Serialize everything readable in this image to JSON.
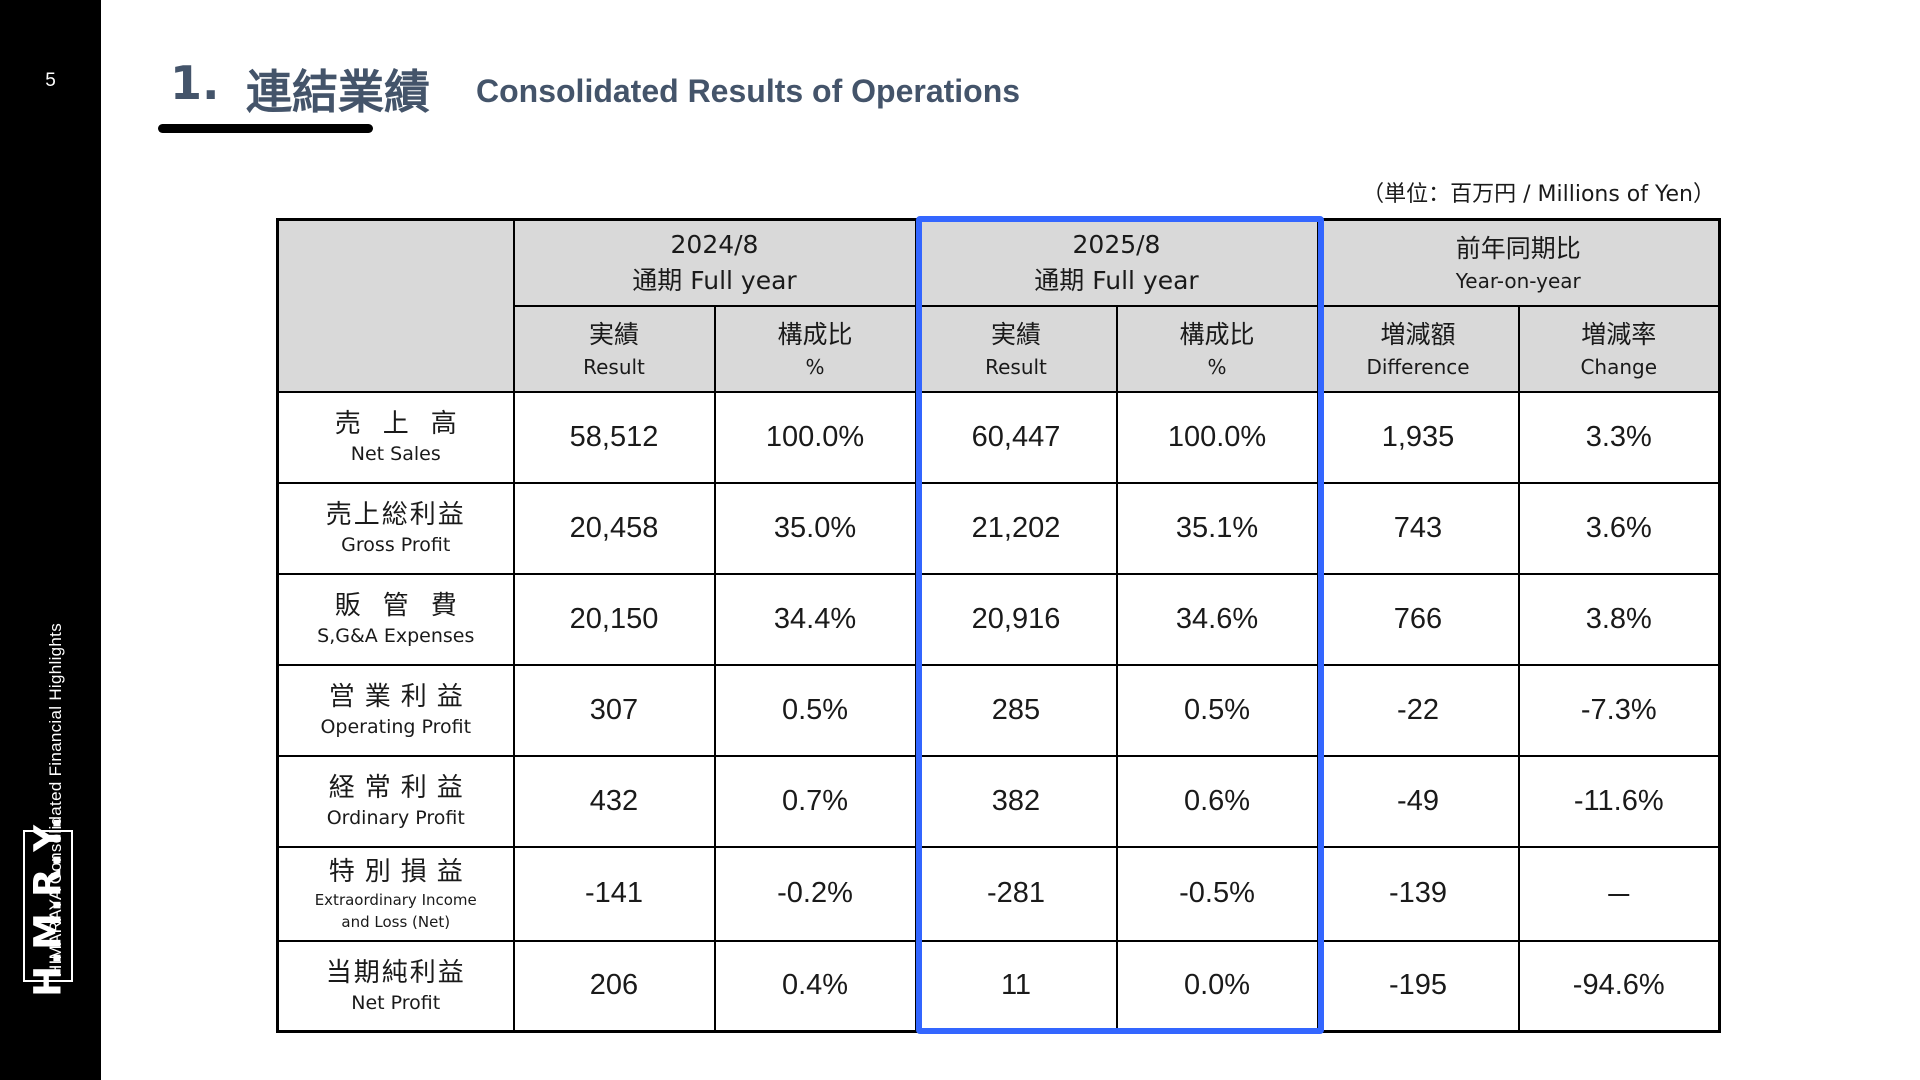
{
  "page_number": "5",
  "sidebar": {
    "caption": "HIMARAYA  Consolidated Financial Highlights",
    "logo": "H.M.R.Y."
  },
  "header": {
    "number": "1.",
    "title_ja": "連結業績",
    "title_en": "Consolidated Results of Operations"
  },
  "unit_note": "（単位：百万円  /  Millions of Yen）",
  "colors": {
    "accent_box": "#3366ff",
    "title": "#44546a",
    "header_bg": "#d9d9d9",
    "sidebar": "#000000"
  },
  "table": {
    "groups": [
      {
        "period": "2024/8",
        "label": "通期 Full year"
      },
      {
        "period": "2025/8",
        "label": "通期 Full year"
      },
      {
        "period": "前年同期比",
        "label": "Year-on-year"
      }
    ],
    "subheaders": [
      {
        "ja": "実績",
        "en": "Result"
      },
      {
        "ja": "構成比",
        "en": "%"
      },
      {
        "ja": "実績",
        "en": "Result"
      },
      {
        "ja": "構成比",
        "en": "%"
      },
      {
        "ja": "増減額",
        "en": "Difference"
      },
      {
        "ja": "増減率",
        "en": "Change"
      }
    ],
    "rows": [
      {
        "ja": "売上高",
        "en": "Net Sales",
        "values": [
          "58,512",
          "100.0%",
          "60,447",
          "100.0%",
          "1,935",
          "3.3%"
        ]
      },
      {
        "ja": "売上総利益",
        "en": "Gross Profit",
        "values": [
          "20,458",
          "35.0%",
          "21,202",
          "35.1%",
          "743",
          "3.6%"
        ]
      },
      {
        "ja": "販管費",
        "en": "S,G&A Expenses",
        "values": [
          "20,150",
          "34.4%",
          "20,916",
          "34.6%",
          "766",
          "3.8%"
        ]
      },
      {
        "ja": "営業利益",
        "en": "Operating Profit",
        "values": [
          "307",
          "0.5%",
          "285",
          "0.5%",
          "-22",
          "-7.3%"
        ]
      },
      {
        "ja": "経常利益",
        "en": "Ordinary Profit",
        "values": [
          "432",
          "0.7%",
          "382",
          "0.6%",
          "-49",
          "-11.6%"
        ]
      },
      {
        "ja": "特別損益",
        "en": "Extraordinary Income and Loss (Net)",
        "values": [
          "-141",
          "-0.2%",
          "-281",
          "-0.5%",
          "-139",
          "－"
        ]
      },
      {
        "ja": "当期純利益",
        "en": "Net Profit",
        "values": [
          "206",
          "0.4%",
          "11",
          "0.0%",
          "-195",
          "-94.6%"
        ]
      }
    ]
  }
}
